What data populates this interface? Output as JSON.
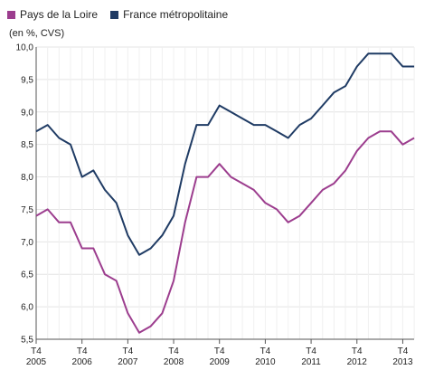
{
  "chart_data": {
    "type": "line",
    "unit_label": "(en %, CVS)",
    "y_ticks": [
      "5,5",
      "6,0",
      "6,5",
      "7,0",
      "7,5",
      "8,0",
      "8,5",
      "9,0",
      "9,5",
      "10,0"
    ],
    "ylim": [
      5.5,
      10.0
    ],
    "x_ticks": [
      {
        "q": "T4",
        "year": "2005"
      },
      {
        "q": "T4",
        "year": "2006"
      },
      {
        "q": "T4",
        "year": "2007"
      },
      {
        "q": "T4",
        "year": "2008"
      },
      {
        "q": "T4",
        "year": "2009"
      },
      {
        "q": "T4",
        "year": "2010"
      },
      {
        "q": "T4",
        "year": "2011"
      },
      {
        "q": "T4",
        "year": "2012"
      },
      {
        "q": "T4",
        "year": "2013"
      }
    ],
    "grid": true,
    "legend_position": "top-left",
    "series": [
      {
        "name": "Pays de la Loire",
        "color": "#9c3d8e",
        "values": [
          7.4,
          7.5,
          7.3,
          7.3,
          6.9,
          6.9,
          6.5,
          6.4,
          5.9,
          5.6,
          5.7,
          5.9,
          6.4,
          7.3,
          8.0,
          8.0,
          8.2,
          8.0,
          7.9,
          7.8,
          7.6,
          7.5,
          7.3,
          7.4,
          7.6,
          7.8,
          7.9,
          8.1,
          8.4,
          8.6,
          8.7,
          8.7,
          8.5,
          8.6
        ]
      },
      {
        "name": "France métropolitaine",
        "color": "#1f3b64",
        "values": [
          8.7,
          8.8,
          8.6,
          8.5,
          8.0,
          8.1,
          7.8,
          7.6,
          7.1,
          6.8,
          6.9,
          7.1,
          7.4,
          8.2,
          8.8,
          8.8,
          9.1,
          9.0,
          8.9,
          8.8,
          8.8,
          8.7,
          8.6,
          8.8,
          8.9,
          9.1,
          9.3,
          9.4,
          9.7,
          9.9,
          9.9,
          9.9,
          9.7,
          9.7
        ]
      }
    ]
  }
}
